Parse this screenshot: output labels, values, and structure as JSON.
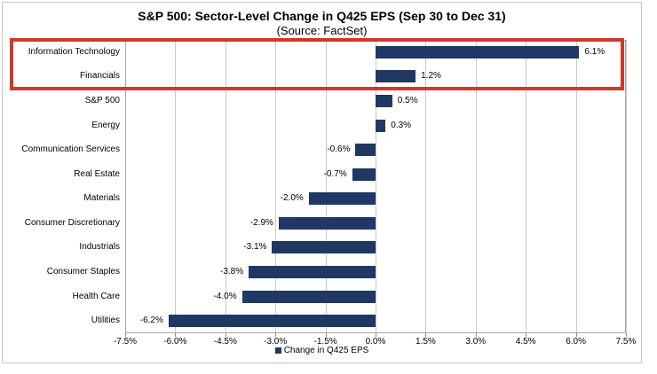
{
  "chart_data": {
    "type": "bar",
    "orientation": "horizontal",
    "title": "S&P 500: Sector-Level Change in Q425 EPS (Sep 30 to Dec 31)",
    "subtitle": "(Source: FactSet)",
    "categories": [
      "Information Technology",
      "Financials",
      "S&P 500",
      "Energy",
      "Communication Services",
      "Real Estate",
      "Materials",
      "Consumer Discretionary",
      "Industrials",
      "Consumer Staples",
      "Health Care",
      "Utilities"
    ],
    "values": [
      6.1,
      1.2,
      0.5,
      0.3,
      -0.6,
      -0.7,
      -2.0,
      -2.9,
      -3.1,
      -3.8,
      -4.0,
      -6.2
    ],
    "value_labels": [
      "6.1%",
      "1.2%",
      "0.5%",
      "0.3%",
      "-0.6%",
      "-0.7%",
      "-2.0%",
      "-2.9%",
      "-3.1%",
      "-3.8%",
      "-4.0%",
      "-6.2%"
    ],
    "xlim": [
      -7.5,
      7.5
    ],
    "x_tick_values": [
      -7.5,
      -6.0,
      -4.5,
      -3.0,
      -1.5,
      0.0,
      1.5,
      3.0,
      4.5,
      6.0,
      7.5
    ],
    "x_ticks": [
      "-7.5%",
      "-6.0%",
      "-4.5%",
      "-3.0%",
      "-1.5%",
      "0.0%",
      "1.5%",
      "3.0%",
      "4.5%",
      "6.0%",
      "7.5%"
    ],
    "legend": "Change in Q425 EPS",
    "legend_position": "bottom-center",
    "grid": "vertical",
    "colors": {
      "bar": "#1f3864",
      "highlight_box": "#d0372e",
      "gridline": "#c9c9c9",
      "plot_border": "#a6a6a6"
    },
    "annotation": {
      "type": "highlight-box",
      "highlighted_rows": [
        "Information Technology",
        "Financials"
      ]
    }
  }
}
